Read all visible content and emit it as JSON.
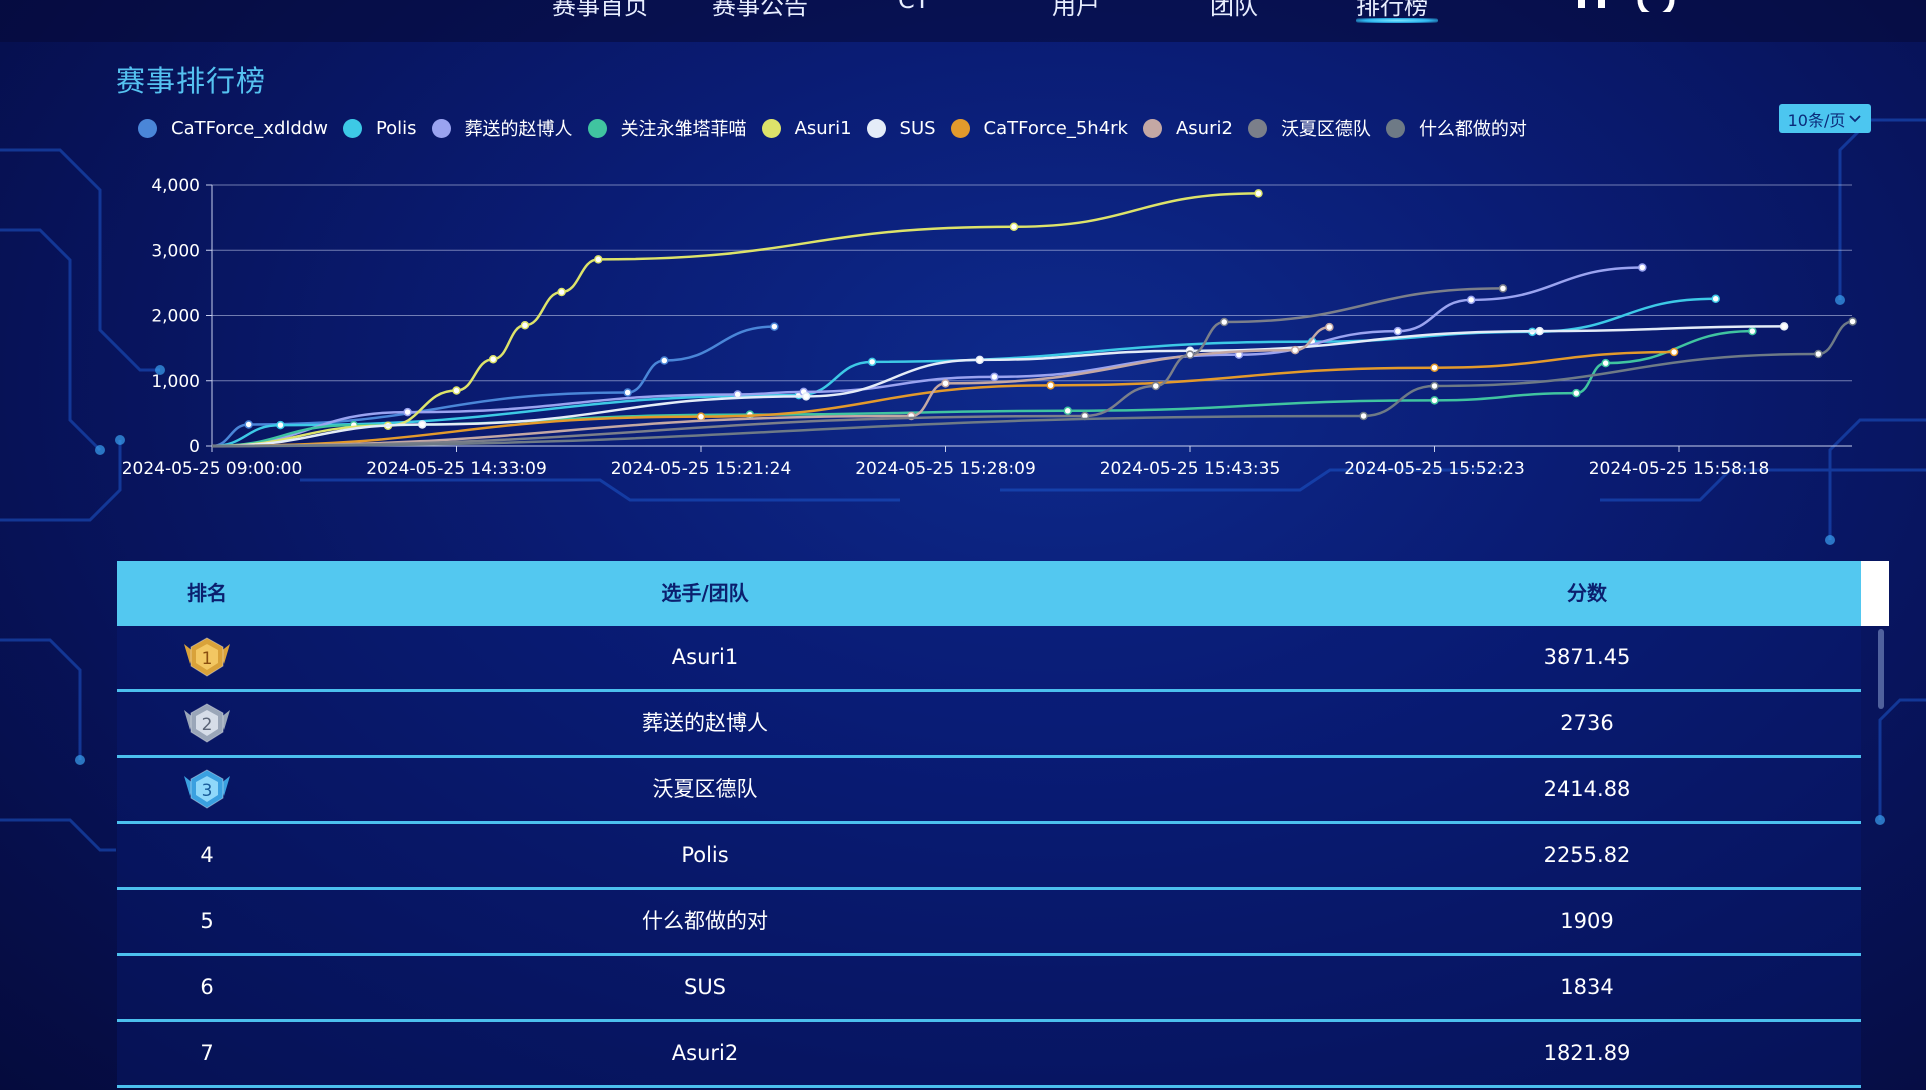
{
  "nav": {
    "items": [
      "赛事首页",
      "赛事公告",
      "CT",
      "用户",
      "团队",
      "排行榜"
    ],
    "active_index": 5
  },
  "title": "赛事排行榜",
  "page_size_label": "10条/页",
  "legend": [
    {
      "name": "CaTForce_xdlddw",
      "color": "#4a86d8"
    },
    {
      "name": "Polis",
      "color": "#3dc9e6"
    },
    {
      "name": "葬送的赵博人",
      "color": "#9aa3f0"
    },
    {
      "name": "关注永雏塔菲喵",
      "color": "#40c4a0"
    },
    {
      "name": "Asuri1",
      "color": "#dde36a"
    },
    {
      "name": "SUS",
      "color": "#e4ecf8"
    },
    {
      "name": "CaTForce_5h4rk",
      "color": "#e39a2c"
    },
    {
      "name": "Asuri2",
      "color": "#c4a8a4"
    },
    {
      "name": "沃夏区德队",
      "color": "#7b7f8a"
    },
    {
      "name": "什么都做的对",
      "color": "#6e7a86"
    }
  ],
  "chart_data": {
    "type": "line",
    "x_tick_labels": [
      "2024-05-25 09:00:00",
      "2024-05-25 14:33:09",
      "2024-05-25 15:21:24",
      "2024-05-25 15:28:09",
      "2024-05-25 15:43:35",
      "2024-05-25 15:52:23",
      "2024-05-25 15:58:18"
    ],
    "y_ticks": [
      "0",
      "1,000",
      "2,000",
      "3,000",
      "4,000"
    ],
    "ylim": [
      0,
      4000
    ],
    "x_axis": "category index (0 = 2024-05-25 09:00:00, ticks every 1 unit)",
    "grid": true,
    "legend_position": "top-left",
    "series": [
      {
        "name": "CaTForce_xdlddw",
        "color": "#4a86d8",
        "points": [
          [
            0,
            0
          ],
          [
            0.15,
            330
          ],
          [
            1.7,
            820
          ],
          [
            1.85,
            1310
          ],
          [
            2.3,
            1830
          ]
        ]
      },
      {
        "name": "Polis",
        "color": "#3dc9e6",
        "points": [
          [
            0,
            0
          ],
          [
            0.28,
            320
          ],
          [
            2.4,
            780
          ],
          [
            2.7,
            1290
          ],
          [
            4.5,
            1600
          ],
          [
            5.4,
            1750
          ],
          [
            6.15,
            2256
          ]
        ]
      },
      {
        "name": "葬送的赵博人",
        "color": "#9aa3f0",
        "points": [
          [
            0,
            0
          ],
          [
            0.8,
            520
          ],
          [
            2.15,
            790
          ],
          [
            2.42,
            830
          ],
          [
            3.2,
            1060
          ],
          [
            4.2,
            1400
          ],
          [
            4.85,
            1760
          ],
          [
            5.15,
            2240
          ],
          [
            5.85,
            2736
          ]
        ]
      },
      {
        "name": "关注永雏塔菲喵",
        "color": "#40c4a0",
        "points": [
          [
            0,
            0
          ],
          [
            0.58,
            320
          ],
          [
            2.2,
            480
          ],
          [
            3.5,
            540
          ],
          [
            5.0,
            700
          ],
          [
            5.58,
            810
          ],
          [
            5.7,
            1270
          ],
          [
            6.3,
            1760
          ]
        ]
      },
      {
        "name": "Asuri1",
        "color": "#dde36a",
        "points": [
          [
            0,
            0
          ],
          [
            0.72,
            310
          ],
          [
            1.0,
            850
          ],
          [
            1.15,
            1330
          ],
          [
            1.28,
            1850
          ],
          [
            1.43,
            2360
          ],
          [
            1.58,
            2860
          ],
          [
            3.28,
            3360
          ],
          [
            4.28,
            3871
          ]
        ]
      },
      {
        "name": "SUS",
        "color": "#e4ecf8",
        "points": [
          [
            0,
            0
          ],
          [
            0.86,
            330
          ],
          [
            2.43,
            760
          ],
          [
            3.14,
            1320
          ],
          [
            4.0,
            1460
          ],
          [
            5.43,
            1760
          ],
          [
            6.43,
            1834
          ]
        ]
      },
      {
        "name": "CaTForce_5h4rk",
        "color": "#e39a2c",
        "points": [
          [
            0,
            0
          ],
          [
            2.0,
            450
          ],
          [
            3.43,
            930
          ],
          [
            5.0,
            1200
          ],
          [
            5.98,
            1440
          ]
        ]
      },
      {
        "name": "Asuri2",
        "color": "#c4a8a4",
        "points": [
          [
            0,
            0
          ],
          [
            2.86,
            460
          ],
          [
            3.0,
            960
          ],
          [
            4.43,
            1470
          ],
          [
            4.57,
            1822
          ]
        ]
      },
      {
        "name": "沃夏区德队",
        "color": "#7b7f8a",
        "points": [
          [
            0,
            0
          ],
          [
            3.57,
            460
          ],
          [
            3.86,
            920
          ],
          [
            4.0,
            1400
          ],
          [
            4.14,
            1900
          ],
          [
            5.28,
            2415
          ]
        ]
      },
      {
        "name": "什么都做的对",
        "color": "#6e7a86",
        "points": [
          [
            0,
            0
          ],
          [
            4.71,
            460
          ],
          [
            5.0,
            920
          ],
          [
            6.57,
            1410
          ],
          [
            6.71,
            1909
          ]
        ]
      }
    ]
  },
  "table": {
    "headers": {
      "rank": "排名",
      "name": "选手/团队",
      "score": "分数"
    },
    "rows": [
      {
        "rank": "1",
        "name": "Asuri1",
        "score": "3871.45",
        "medal": "gold"
      },
      {
        "rank": "2",
        "name": "葬送的赵博人",
        "score": "2736",
        "medal": "silver"
      },
      {
        "rank": "3",
        "name": "沃夏区德队",
        "score": "2414.88",
        "medal": "blue"
      },
      {
        "rank": "4",
        "name": "Polis",
        "score": "2255.82"
      },
      {
        "rank": "5",
        "name": "什么都做的对",
        "score": "1909"
      },
      {
        "rank": "6",
        "name": "SUS",
        "score": "1834"
      },
      {
        "rank": "7",
        "name": "Asuri2",
        "score": "1821.89"
      }
    ]
  }
}
